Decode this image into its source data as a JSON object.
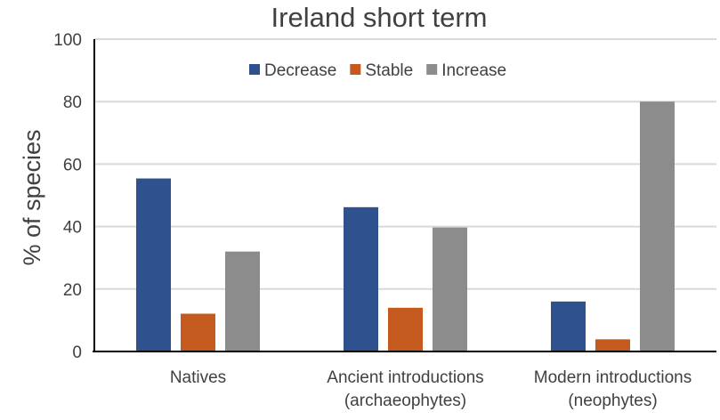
{
  "chart_data": {
    "type": "bar",
    "title": "Ireland short term",
    "xlabel": "",
    "ylabel": "% of species",
    "ylim": [
      0,
      100
    ],
    "yticks": [
      "0",
      "20",
      "40",
      "60",
      "80",
      "100"
    ],
    "grid": true,
    "legend": "top-center",
    "categories": [
      [
        "Natives"
      ],
      [
        "Ancient introductions",
        "(archaeophytes)"
      ],
      [
        "Modern introductions",
        "(neophytes)"
      ]
    ],
    "series": [
      {
        "name": "Decrease",
        "color": "#2F528F",
        "values": [
          55.4,
          46.2,
          16.0
        ]
      },
      {
        "name": "Stable",
        "color": "#C55A1E",
        "values": [
          12.1,
          14.0,
          3.9
        ]
      },
      {
        "name": "Increase",
        "color": "#8C8C8C",
        "values": [
          32.0,
          39.7,
          80.0
        ]
      }
    ]
  }
}
